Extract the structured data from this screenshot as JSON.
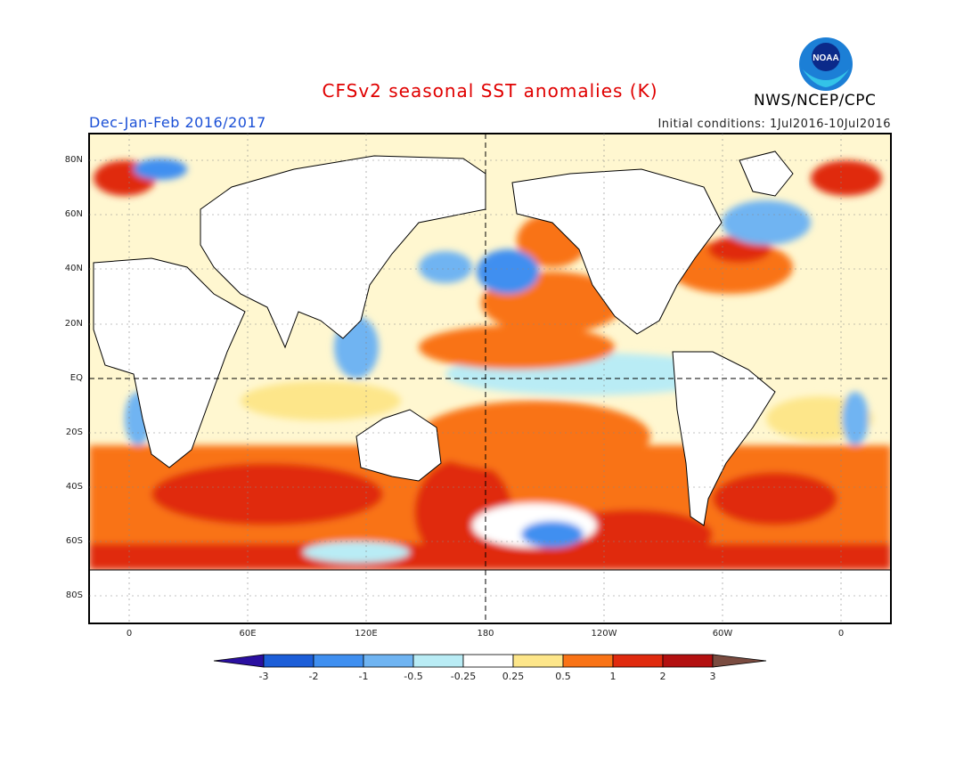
{
  "title": "CFSv2 seasonal SST anomalies (K)",
  "period": "Dec-Jan-Feb 2016/2017",
  "initial_conditions": "Initial conditions: 1Jul2016-10Jul2016",
  "agency": "NWS/NCEP/CPC",
  "logo_text": "NOAA",
  "lat_ticks": [
    "80N",
    "60N",
    "40N",
    "20N",
    "EQ",
    "20S",
    "40S",
    "60S",
    "80S"
  ],
  "lon_ticks": [
    "0",
    "60E",
    "120E",
    "180",
    "120W",
    "60W",
    "0"
  ],
  "colorbar": {
    "labels": [
      "-3",
      "-2",
      "-1",
      "-0.5",
      "-0.25",
      "0.25",
      "0.5",
      "1",
      "2",
      "3"
    ],
    "colors": [
      "#2a0fa0",
      "#1c5ed8",
      "#3f8ff0",
      "#6fb4f2",
      "#b9ecf5",
      "#ffffff",
      "#fde68a",
      "#f97316",
      "#e02a0e",
      "#b31010",
      "#7a4b40"
    ]
  },
  "colors": {
    "land": "#ffffff",
    "coast": "#000000",
    "warm1": "#fde68a",
    "warm2": "#f97316",
    "warm3": "#e02a0e",
    "warm4": "#b31010",
    "cool1": "#b9ecf5",
    "cool2": "#6fb4f2",
    "cool3": "#3f8ff0"
  }
}
